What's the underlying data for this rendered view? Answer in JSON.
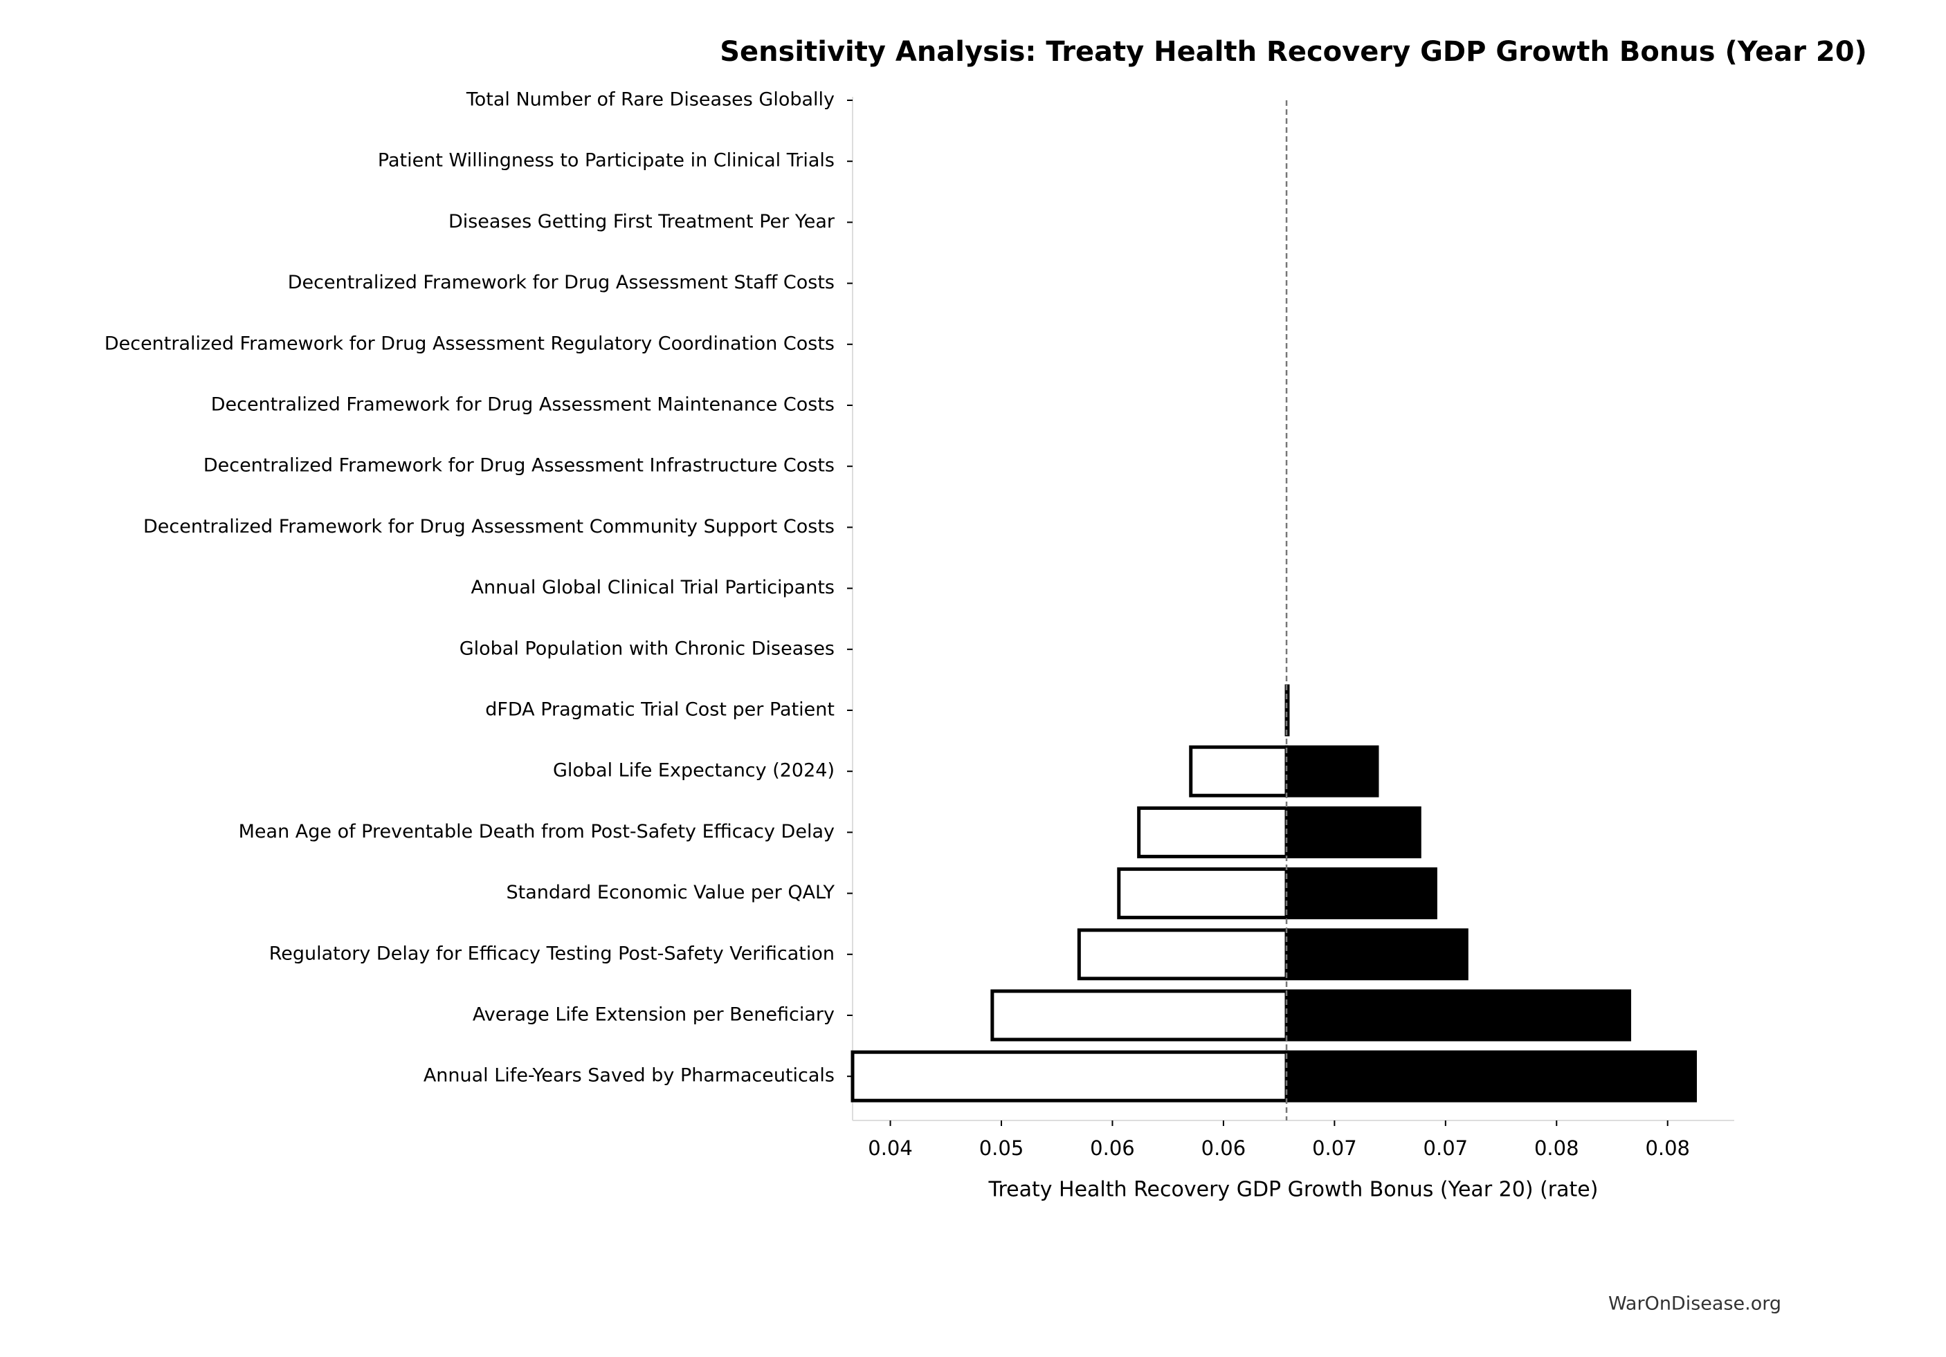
{
  "chart_data": {
    "type": "tornado",
    "title": "Sensitivity Analysis: Treaty Health Recovery GDP Growth Bonus (Year 20)",
    "x_label": "Treaty Health Recovery GDP Growth Bonus (Year 20) (rate)",
    "footer": "WarOnDisease.org",
    "categories": [
      "Total Number of Rare Diseases Globally",
      "Patient Willingness to Participate in Clinical Trials",
      "Diseases Getting First Treatment Per Year",
      "Decentralized Framework for Drug Assessment Staff Costs",
      "Decentralized Framework for Drug Assessment Regulatory Coordination Costs",
      "Decentralized Framework for Drug Assessment Maintenance Costs",
      "Decentralized Framework for Drug Assessment Infrastructure Costs",
      "Decentralized Framework for Drug Assessment Community Support Costs",
      "Annual Global Clinical Trial Participants",
      "Global Population with Chronic Diseases",
      "dFDA Pragmatic Trial Cost per Patient",
      "Global Life Expectancy (2024)",
      "Mean Age of Preventable Death from Post-Safety Efficacy Delay",
      "Standard Economic Value per QALY",
      "Regulatory Delay for Efficacy Testing Post-Safety Verification",
      "Average Life Extension per Beneficiary",
      "Annual Life-Years Saved by Pharmaceuticals"
    ],
    "baseline": 0.06284,
    "series": [
      {
        "color": "#ffffff",
        "values": [
          0.06284,
          0.06284,
          0.06284,
          0.06284,
          0.06284,
          0.06284,
          0.06284,
          0.06284,
          0.06284,
          0.06284,
          0.06284,
          0.05853,
          0.05619,
          0.05529,
          0.0535,
          0.04959,
          0.0433
        ]
      },
      {
        "color": "#000000",
        "values": [
          0.06284,
          0.06284,
          0.06284,
          0.06284,
          0.06284,
          0.06284,
          0.06284,
          0.06284,
          0.06284,
          0.06284,
          0.0629,
          0.06692,
          0.06883,
          0.06955,
          0.07095,
          0.07828,
          0.08124
        ]
      }
    ],
    "xlim": [
      0.0433,
      0.083
    ],
    "xticks": [
      {
        "value": 0.045,
        "label": "0.04"
      },
      {
        "value": 0.05,
        "label": "0.05"
      },
      {
        "value": 0.055,
        "label": "0.06"
      },
      {
        "value": 0.06,
        "label": "0.06"
      },
      {
        "value": 0.065,
        "label": "0.07"
      },
      {
        "value": 0.07,
        "label": "0.07"
      },
      {
        "value": 0.075,
        "label": "0.08"
      },
      {
        "value": 0.08,
        "label": "0.08"
      }
    ]
  }
}
